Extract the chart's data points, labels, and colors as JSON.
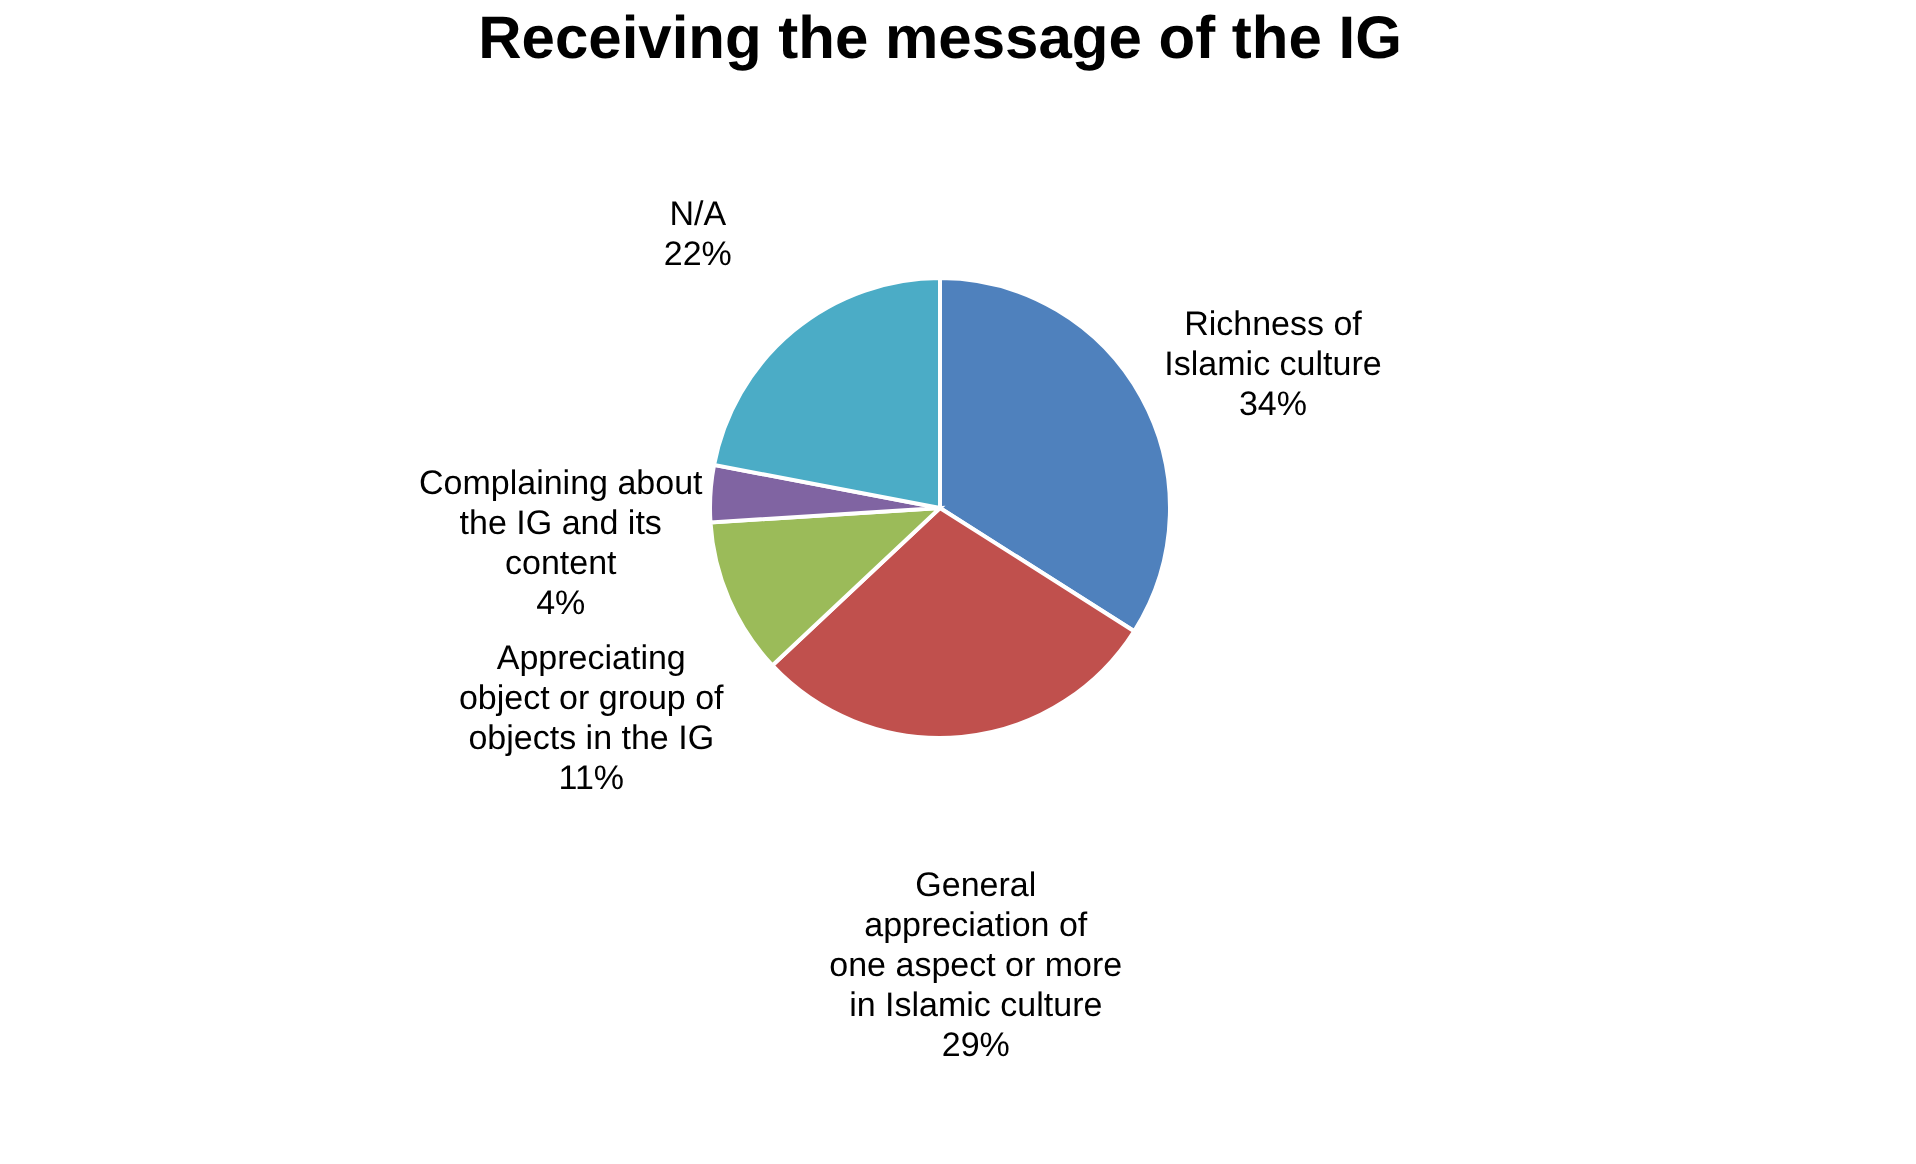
{
  "chart_data": {
    "type": "pie",
    "title": "Receiving the message of the IG",
    "categories": [
      "Richness of Islamic culture",
      "General appreciation of one aspect or more in Islamic culture",
      "Appreciating object or group of objects in the IG",
      "Complaining about the IG and its content",
      "N/A"
    ],
    "values": [
      34,
      29,
      11,
      4,
      22
    ],
    "colors": [
      "#4f81bd",
      "#c0504d",
      "#9bbb59",
      "#8064a2",
      "#4bacc6"
    ],
    "value_labels": [
      "34%",
      "29%",
      "11%",
      "4%",
      "22%"
    ],
    "legend": false
  }
}
